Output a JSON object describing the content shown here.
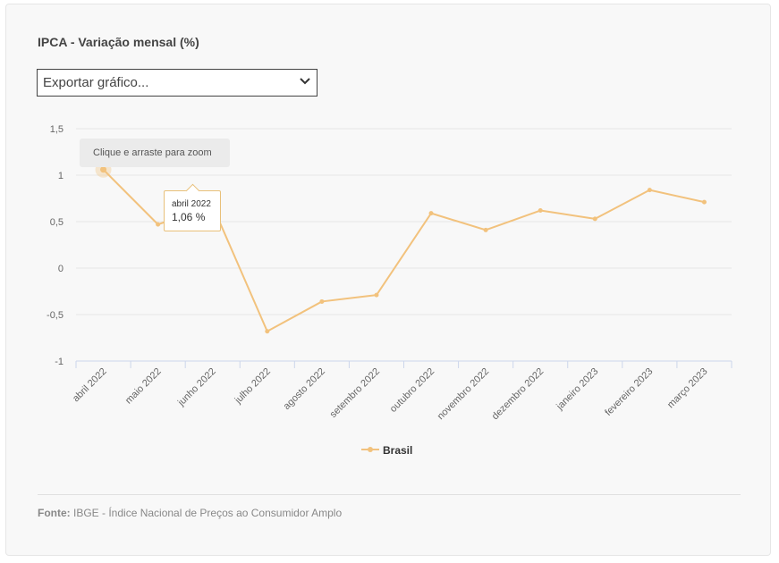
{
  "title": "IPCA - Variação mensal (%)",
  "export": {
    "label": "Exportar gráfico..."
  },
  "zoom_hint": "Clique e arraste para zoom",
  "tooltip": {
    "date": "abril 2022",
    "value": "1,06 %"
  },
  "legend": {
    "label": "Brasil"
  },
  "source": {
    "prefix": "Fonte:",
    "text": "IBGE - Índice Nacional de Preços ao Consumidor Amplo"
  },
  "colors": {
    "series": "#f2c27d",
    "grid": "#e6e6e6",
    "axis": "#ccd6eb"
  },
  "chart_data": {
    "type": "line",
    "categories": [
      "abril 2022",
      "maio 2022",
      "junho 2022",
      "julho 2022",
      "agosto 2022",
      "setembro 2022",
      "outubro 2022",
      "novembro 2022",
      "dezembro 2022",
      "janeiro 2023",
      "fevereiro 2023",
      "março 2023"
    ],
    "series": [
      {
        "name": "Brasil",
        "values": [
          1.06,
          0.47,
          0.67,
          -0.68,
          -0.36,
          -0.29,
          0.59,
          0.41,
          0.62,
          0.53,
          0.84,
          0.71
        ]
      }
    ],
    "yticks": [
      1.5,
      1,
      0.5,
      0,
      -0.5,
      -1
    ],
    "ytick_labels": [
      "1,5",
      "1",
      "0,5",
      "0",
      "-0,5",
      "-1"
    ],
    "ylim": [
      -1,
      1.5
    ],
    "grid": true,
    "legend_position": "bottom-center"
  }
}
